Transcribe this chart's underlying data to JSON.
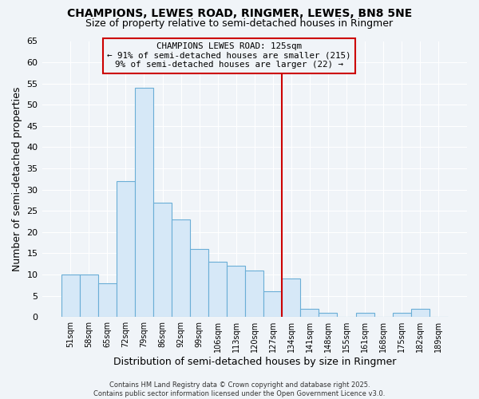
{
  "title": "CHAMPIONS, LEWES ROAD, RINGMER, LEWES, BN8 5NE",
  "subtitle": "Size of property relative to semi-detached houses in Ringmer",
  "xlabel": "Distribution of semi-detached houses by size in Ringmer",
  "ylabel": "Number of semi-detached properties",
  "categories": [
    "51sqm",
    "58sqm",
    "65sqm",
    "72sqm",
    "79sqm",
    "86sqm",
    "92sqm",
    "99sqm",
    "106sqm",
    "113sqm",
    "120sqm",
    "127sqm",
    "134sqm",
    "141sqm",
    "148sqm",
    "155sqm",
    "161sqm",
    "168sqm",
    "175sqm",
    "182sqm",
    "189sqm"
  ],
  "values": [
    10,
    10,
    8,
    32,
    54,
    27,
    23,
    16,
    13,
    12,
    11,
    6,
    9,
    2,
    1,
    0,
    1,
    0,
    1,
    2,
    0
  ],
  "bar_color_fill": "#d6e8f7",
  "bar_color_edge": "#6aaed6",
  "vline_pos": 11.5,
  "vline_color": "#cc0000",
  "annotation_title": "CHAMPIONS LEWES ROAD: 125sqm",
  "annotation_line1": "← 91% of semi-detached houses are smaller (215)",
  "annotation_line2": "9% of semi-detached houses are larger (22) →",
  "annotation_box_color": "#cc0000",
  "ylim": [
    0,
    65
  ],
  "yticks": [
    0,
    5,
    10,
    15,
    20,
    25,
    30,
    35,
    40,
    45,
    50,
    55,
    60,
    65
  ],
  "background_color": "#f0f4f8",
  "grid_color": "#ffffff",
  "title_fontsize": 10,
  "subtitle_fontsize": 9,
  "footer1": "Contains HM Land Registry data © Crown copyright and database right 2025.",
  "footer2": "Contains public sector information licensed under the Open Government Licence v3.0."
}
